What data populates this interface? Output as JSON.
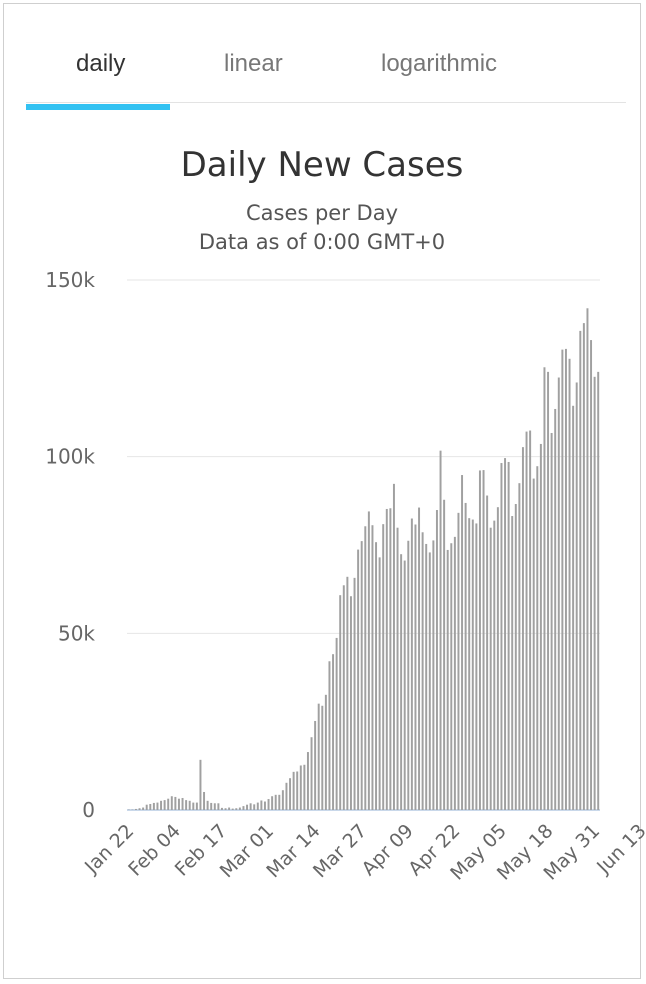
{
  "tabs": [
    {
      "label": "daily",
      "active": true
    },
    {
      "label": "linear",
      "active": false
    },
    {
      "label": "logarithmic",
      "active": false
    }
  ],
  "colors": {
    "accent": "#33c2f2",
    "bar": "#a0a0a0",
    "grid": "#e6e6e6",
    "baseline": "#c9d8ea"
  },
  "chart_data": {
    "type": "bar",
    "title": "Daily New Cases",
    "subtitle": "Cases per Day",
    "subtitle2": "Data as of 0:00 GMT+0",
    "xlabel": "",
    "ylabel": "",
    "ylim": [
      0,
      150000
    ],
    "yticks": [
      0,
      50000,
      100000,
      150000
    ],
    "ytick_labels": [
      "0",
      "50k",
      "100k",
      "150k"
    ],
    "xtick_labels": [
      "Jan 22",
      "Feb 04",
      "Feb 17",
      "Mar 01",
      "Mar 14",
      "Mar 27",
      "Apr 09",
      "Apr 22",
      "May 05",
      "May 18",
      "May 31",
      "Jun 13"
    ],
    "grid": true,
    "x_start": "Jan 22",
    "x_end": "Jun 15",
    "values": [
      100,
      100,
      300,
      500,
      700,
      1500,
      1700,
      2000,
      2100,
      2600,
      2800,
      3200,
      3900,
      3700,
      3200,
      3400,
      2800,
      2600,
      2100,
      2100,
      14200,
      5100,
      2600,
      2000,
      1900,
      1900,
      600,
      500,
      700,
      400,
      500,
      700,
      1100,
      1500,
      1900,
      1600,
      2100,
      2700,
      2400,
      3100,
      3900,
      4300,
      4300,
      5600,
      7700,
      9000,
      10800,
      10900,
      12600,
      12800,
      16400,
      20600,
      25200,
      30100,
      29500,
      32600,
      42100,
      44100,
      48700,
      60800,
      63600,
      66000,
      60500,
      65700,
      73700,
      76100,
      80300,
      84500,
      80600,
      75800,
      71500,
      80900,
      85200,
      85400,
      92300,
      79900,
      72400,
      70600,
      76200,
      82500,
      80800,
      85600,
      78600,
      75300,
      72900,
      76300,
      84900,
      101700,
      87800,
      73600,
      75500,
      77300,
      84100,
      94800,
      86900,
      82600,
      82200,
      81100,
      96100,
      96200,
      89000,
      79900,
      81900,
      85700,
      98200,
      99600,
      98500,
      83200,
      86600,
      92500,
      102700,
      107100,
      107400,
      93800,
      97300,
      103600,
      125300,
      124000,
      106700,
      113500,
      122400,
      130300,
      130500,
      127700,
      114400,
      121000,
      135600,
      137800,
      142000,
      133000,
      122600,
      124000
    ]
  }
}
